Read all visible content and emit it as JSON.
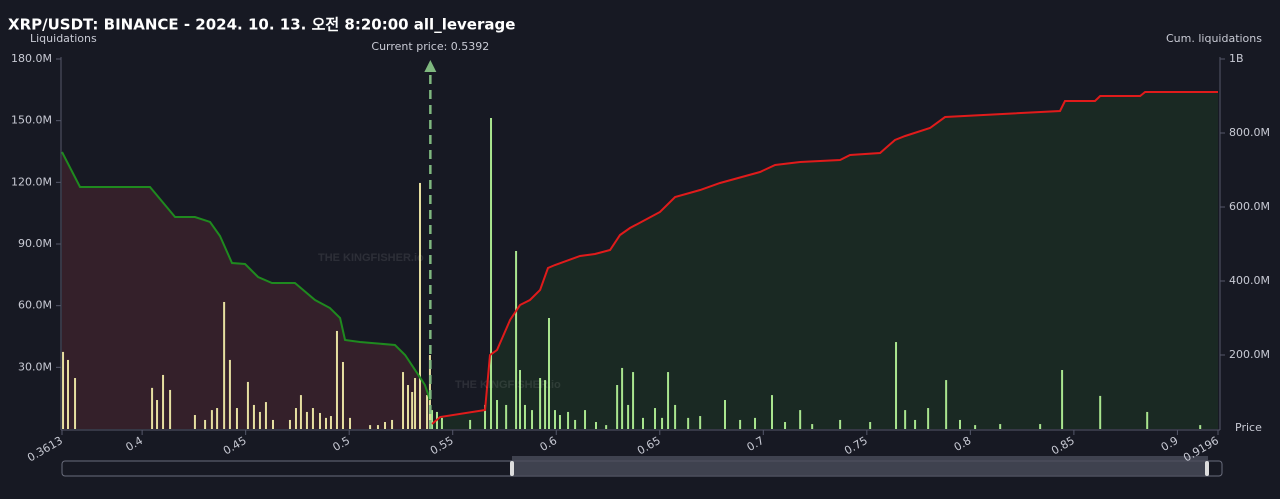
{
  "chart_data": {
    "type": "bar",
    "title": "XRP/USDT: BINANCE - 2024. 10. 13. 오전 8:20:00 all_leverage",
    "ylabel": "Liquidations",
    "y2label": "Cum. liquidations",
    "xlabel": "Price",
    "annotation": "Current price: 0.5392",
    "current_price": 0.5392,
    "watermark": "THE KINGFISHER.io",
    "xlim": [
      0.3613,
      0.9196
    ],
    "xticks": [
      0.3613,
      0.4,
      0.45,
      0.5,
      0.55,
      0.6,
      0.65,
      0.7,
      0.75,
      0.8,
      0.85,
      0.9,
      0.9196
    ],
    "ylim": [
      0,
      180
    ],
    "yticks": [
      {
        "value": 30,
        "label": "30.0M"
      },
      {
        "value": 60,
        "label": "60.0M"
      },
      {
        "value": 90,
        "label": "90.0M"
      },
      {
        "value": 120,
        "label": "120.0M"
      },
      {
        "value": 150,
        "label": "150.0M"
      },
      {
        "value": 180,
        "label": "180.0M"
      }
    ],
    "y2lim": [
      0,
      1000
    ],
    "y2ticks": [
      {
        "value": 200,
        "label": "200.0M"
      },
      {
        "value": 400,
        "label": "400.0M"
      },
      {
        "value": 600,
        "label": "600.0M"
      },
      {
        "value": 800,
        "label": "800.0M"
      },
      {
        "value": 1000,
        "label": "1B"
      }
    ],
    "series": [
      {
        "type": "area",
        "axis": "y2",
        "color": "#1f8a1f",
        "fill": "#34202a",
        "x": [
          0.3613,
          0.37,
          0.4038,
          0.4159,
          0.4255,
          0.4328,
          0.4376,
          0.4434,
          0.4497,
          0.456,
          0.4627,
          0.4738,
          0.4835,
          0.4907,
          0.4956,
          0.498,
          0.5052,
          0.5221,
          0.527,
          0.5318,
          0.5366,
          0.539
        ],
        "values": [
          748.6,
          654.1,
          654.1,
          573.0,
          573.0,
          559.5,
          521.6,
          448.6,
          445.9,
          410.8,
          394.6,
          394.6,
          348.6,
          327.0,
          300.0,
          240.5,
          235.1,
          227.0,
          200.0,
          159.5,
          118.9,
          78.4
        ]
      },
      {
        "type": "area",
        "axis": "y2",
        "color": "#e01b1b",
        "fill": "#1a2923",
        "x": [
          0.54,
          0.5439,
          0.5656,
          0.568,
          0.5714,
          0.5777,
          0.5825,
          0.5873,
          0.5922,
          0.596,
          0.5994,
          0.6115,
          0.6187,
          0.626,
          0.6308,
          0.6356,
          0.6501,
          0.6574,
          0.6695,
          0.6791,
          0.6984,
          0.7057,
          0.7178,
          0.7371,
          0.7419,
          0.7564,
          0.7636,
          0.7685,
          0.7805,
          0.7878,
          0.8433,
          0.8457,
          0.8602,
          0.8627,
          0.882,
          0.8844,
          0.9196
        ],
        "values": [
          13.5,
          32.4,
          51.4,
          200.0,
          213.5,
          294.6,
          335.1,
          348.6,
          375.7,
          435.1,
          443.2,
          467.6,
          473.0,
          483.8,
          524.3,
          543.2,
          586.5,
          627.0,
          645.9,
          664.9,
          694.6,
          713.5,
          721.6,
          727.0,
          740.5,
          745.9,
          781.1,
          791.9,
          813.5,
          843.2,
          859.5,
          886.5,
          886.5,
          900.0,
          900.0,
          910.8,
          910.8
        ]
      },
      {
        "type": "bar",
        "color": "#e6dfa0",
        "x": [
          0.3618,
          0.3642,
          0.3676,
          0.4048,
          0.4072,
          0.4101,
          0.4135,
          0.4255,
          0.4304,
          0.4337,
          0.4362,
          0.4396,
          0.4424,
          0.4458,
          0.4511,
          0.454,
          0.4569,
          0.4598,
          0.4632,
          0.4714,
          0.4743,
          0.4767,
          0.4796,
          0.4825,
          0.4859,
          0.4888,
          0.4912,
          0.4941,
          0.497,
          0.5004,
          0.5101,
          0.5139,
          0.5173,
          0.5207,
          0.526,
          0.5284,
          0.5304,
          0.5318,
          0.5342,
          0.5376,
          0.539
        ],
        "values": [
          37.5,
          33.6,
          24.8,
          20.0,
          14.1,
          26.3,
          19.0,
          6.8,
          4.4,
          9.2,
          10.2,
          61.8,
          33.6,
          10.2,
          22.9,
          11.7,
          8.3,
          13.1,
          4.4,
          4.4,
          10.2,
          16.5,
          8.3,
          10.2,
          7.8,
          5.4,
          6.3,
          47.7,
          32.6,
          5.4,
          1.9,
          1.9,
          3.4,
          4.4,
          27.7,
          21.4,
          18.0,
          24.8,
          119.7,
          16.5,
          36.0
        ]
      },
      {
        "type": "bar",
        "color": "#a9e58e",
        "x": [
          0.54,
          0.5424,
          0.5448,
          0.5584,
          0.5656,
          0.5685,
          0.5714,
          0.5758,
          0.5806,
          0.5825,
          0.5849,
          0.5883,
          0.5922,
          0.5946,
          0.5965,
          0.5994,
          0.6018,
          0.6057,
          0.6091,
          0.6139,
          0.6192,
          0.6241,
          0.6294,
          0.6318,
          0.6347,
          0.6371,
          0.6419,
          0.6477,
          0.6511,
          0.654,
          0.6574,
          0.6637,
          0.6695,
          0.6815,
          0.6888,
          0.696,
          0.7042,
          0.7105,
          0.7178,
          0.7236,
          0.7371,
          0.7516,
          0.7641,
          0.7685,
          0.7733,
          0.7796,
          0.7883,
          0.795,
          0.8023,
          0.8144,
          0.8337,
          0.8443,
          0.8627,
          0.8854,
          0.911
        ],
        "values": [
          9.2,
          8.3,
          5.4,
          4.4,
          11.7,
          151.3,
          14.1,
          11.7,
          86.6,
          28.7,
          11.7,
          9.2,
          24.8,
          23.8,
          54.0,
          9.2,
          6.8,
          8.3,
          4.4,
          9.2,
          3.4,
          1.9,
          21.4,
          29.7,
          11.7,
          27.7,
          5.4,
          10.2,
          5.4,
          27.7,
          11.7,
          5.4,
          6.3,
          14.1,
          4.4,
          5.4,
          16.5,
          3.4,
          9.2,
          2.4,
          4.4,
          3.4,
          42.3,
          9.2,
          4.4,
          10.2,
          23.8,
          4.4,
          1.9,
          2.4,
          2.4,
          28.7,
          16.1,
          8.3,
          1.9
        ]
      }
    ]
  }
}
